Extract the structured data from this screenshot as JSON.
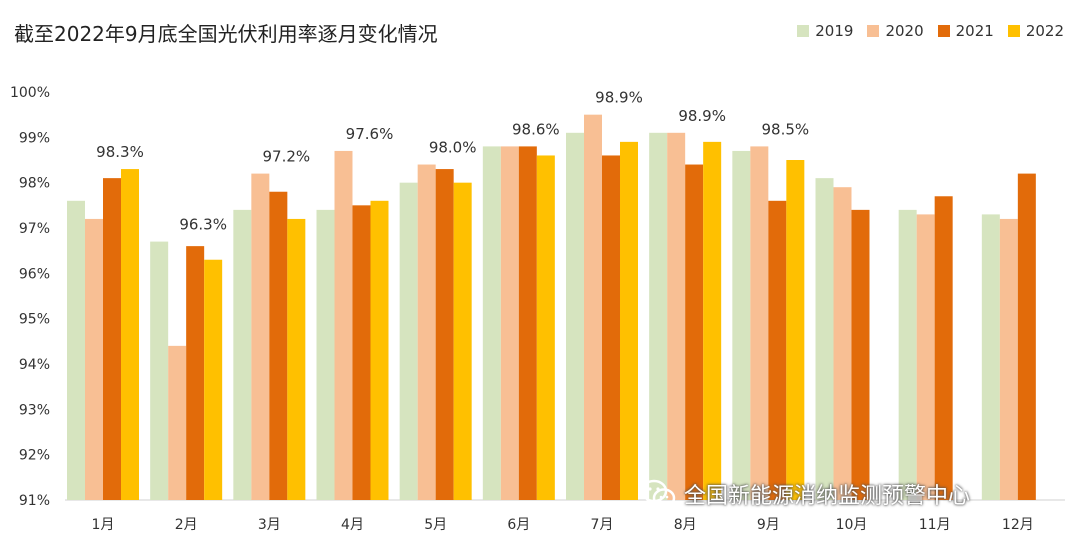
{
  "chart_data": {
    "type": "bar",
    "title": "截至2022年9月底全国光伏利用率逐月变化情况",
    "categories": [
      "1月",
      "2月",
      "3月",
      "4月",
      "5月",
      "6月",
      "7月",
      "8月",
      "9月",
      "10月",
      "11月",
      "12月"
    ],
    "series": [
      {
        "name": "2019",
        "color": "#d6e4bf",
        "values": [
          97.6,
          96.7,
          97.4,
          97.4,
          98.0,
          98.8,
          99.1,
          99.1,
          98.7,
          98.1,
          97.4,
          97.3
        ]
      },
      {
        "name": "2020",
        "color": "#f8bf94",
        "values": [
          97.2,
          94.4,
          98.2,
          98.7,
          98.4,
          98.8,
          99.5,
          99.1,
          98.8,
          97.9,
          97.3,
          97.2
        ]
      },
      {
        "name": "2021",
        "color": "#e26b0a",
        "values": [
          98.1,
          96.6,
          97.8,
          97.5,
          98.3,
          98.8,
          98.6,
          98.4,
          97.6,
          97.4,
          97.7,
          98.2
        ]
      },
      {
        "name": "2022",
        "color": "#ffc000",
        "values": [
          98.3,
          96.3,
          97.2,
          97.6,
          98.0,
          98.6,
          98.9,
          98.9,
          98.5,
          null,
          null,
          null
        ]
      }
    ],
    "data_labels": [
      "98.3%",
      "96.3%",
      "97.2%",
      "97.6%",
      "98.0%",
      "98.6%",
      "98.9%",
      "98.9%",
      "98.5%"
    ],
    "yticks": [
      "91%",
      "92%",
      "93%",
      "94%",
      "95%",
      "96%",
      "97%",
      "98%",
      "99%",
      "100%"
    ],
    "ylim": [
      91,
      100
    ],
    "grid": false,
    "legend_position": "top-right"
  },
  "watermark": {
    "text": "全国新能源消纳监测预警中心",
    "icon": "wechat-icon"
  }
}
